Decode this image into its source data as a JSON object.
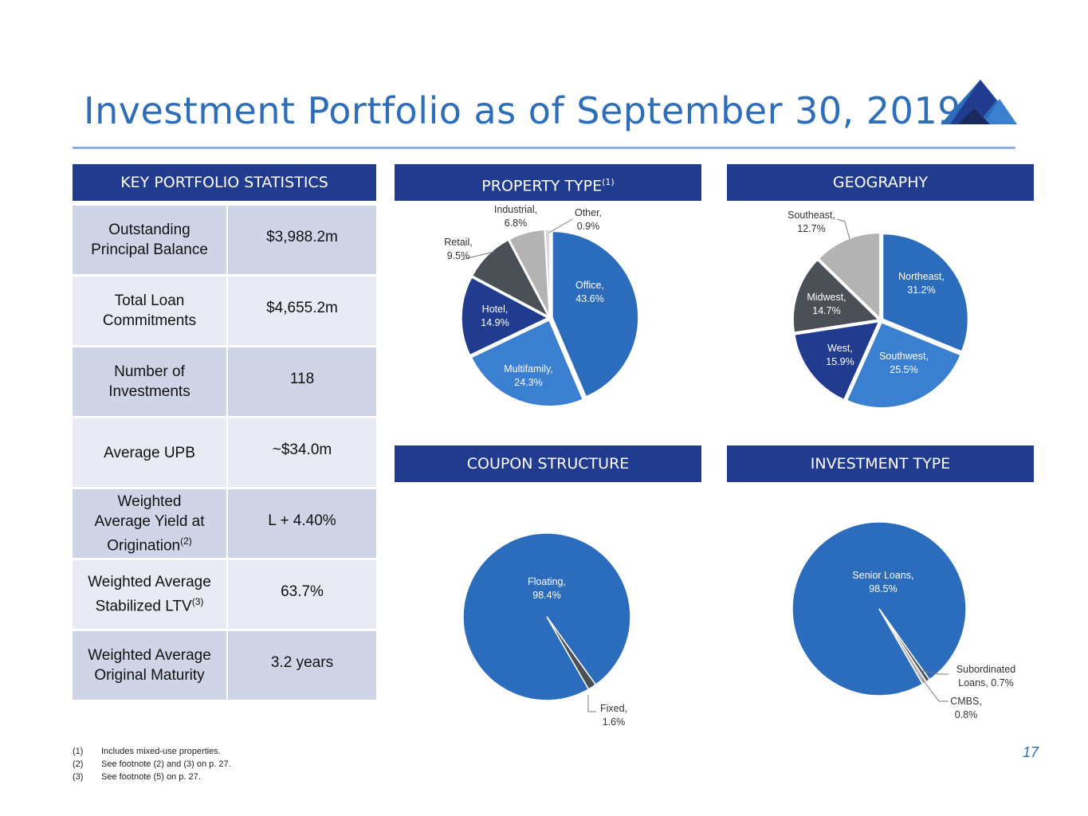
{
  "title": "Investment Portfolio as of September 30, 2019",
  "colors": {
    "title": "#2e6db8",
    "header_bg": "#213c8f",
    "accent_blue": "#2c6cbd",
    "mid_blue": "#3a7fd0",
    "navy": "#213c8f",
    "dark_gray": "#4a5055",
    "light_gray": "#b3b3b3"
  },
  "stats": {
    "header": "KEY PORTFOLIO STATISTICS",
    "rows": [
      {
        "label": "Outstanding Principal Balance",
        "value": "$3,988.2m"
      },
      {
        "label": "Total Loan Commitments",
        "value": "$4,655.2m"
      },
      {
        "label": "Number of Investments",
        "value": "118"
      },
      {
        "label": "Average UPB",
        "value": "~$34.0m"
      },
      {
        "label": "Weighted Average Yield at Origination",
        "sup": "(2)",
        "value": "L + 4.40%"
      },
      {
        "label": "Weighted Average Stabilized LTV",
        "sup": "(3)",
        "value": "63.7%"
      },
      {
        "label": "Weighted Average Original Maturity",
        "value": "3.2 years"
      }
    ]
  },
  "headers": {
    "property_type": "PROPERTY TYPE",
    "property_type_sup": "(1)",
    "geography": "GEOGRAPHY",
    "coupon_structure": "COUPON STRUCTURE",
    "investment_type": "INVESTMENT TYPE"
  },
  "chart_data": [
    {
      "type": "pie",
      "title": "PROPERTY TYPE",
      "slices": [
        {
          "name": "Office",
          "label": "Office,",
          "value": 43.6,
          "pct": "43.6%",
          "color": "#2c6cbd"
        },
        {
          "name": "Multifamily",
          "label": "Multifamily,",
          "value": 24.3,
          "pct": "24.3%",
          "color": "#3a7fd0"
        },
        {
          "name": "Hotel",
          "label": "Hotel,",
          "value": 14.9,
          "pct": "14.9%",
          "color": "#213c8f"
        },
        {
          "name": "Retail",
          "label": "Retail,",
          "value": 9.5,
          "pct": "9.5%",
          "color": "#4a5055"
        },
        {
          "name": "Industrial",
          "label": "Industrial,",
          "value": 6.8,
          "pct": "6.8%",
          "color": "#b3b3b3"
        },
        {
          "name": "Other",
          "label": "Other,",
          "value": 0.9,
          "pct": "0.9%",
          "color": "#d9d9d9"
        }
      ]
    },
    {
      "type": "pie",
      "title": "GEOGRAPHY",
      "slices": [
        {
          "name": "Northeast",
          "label": "Northeast,",
          "value": 31.2,
          "pct": "31.2%",
          "color": "#2c6cbd"
        },
        {
          "name": "Southwest",
          "label": "Southwest,",
          "value": 25.5,
          "pct": "25.5%",
          "color": "#3a7fd0"
        },
        {
          "name": "West",
          "label": "West,",
          "value": 15.9,
          "pct": "15.9%",
          "color": "#213c8f"
        },
        {
          "name": "Midwest",
          "label": "Midwest,",
          "value": 14.7,
          "pct": "14.7%",
          "color": "#4a5055"
        },
        {
          "name": "Southeast",
          "label": "Southeast,",
          "value": 12.7,
          "pct": "12.7%",
          "color": "#b3b3b3"
        }
      ]
    },
    {
      "type": "pie",
      "title": "COUPON STRUCTURE",
      "slices": [
        {
          "name": "Floating",
          "label": "Floating,",
          "value": 98.4,
          "pct": "98.4%",
          "color": "#2c6cbd"
        },
        {
          "name": "Fixed",
          "label": "Fixed,",
          "value": 1.6,
          "pct": "1.6%",
          "color": "#4a5055"
        }
      ]
    },
    {
      "type": "pie",
      "title": "INVESTMENT TYPE",
      "slices": [
        {
          "name": "Senior Loans",
          "label": "Senior Loans,",
          "value": 98.5,
          "pct": "98.5%",
          "color": "#2c6cbd"
        },
        {
          "name": "Subordinated Loans",
          "label": "Subordinated Loans,",
          "value": 0.7,
          "pct": "0.7%",
          "color": "#4a5055"
        },
        {
          "name": "CMBS",
          "label": "CMBS,",
          "value": 0.8,
          "pct": "0.8%",
          "color": "#b3b3b3"
        }
      ]
    }
  ],
  "footnotes": [
    {
      "num": "(1)",
      "text": "Includes mixed-use properties."
    },
    {
      "num": "(2)",
      "text": "See footnote (2) and (3) on p. 27."
    },
    {
      "num": "(3)",
      "text": "See footnote (5) on p. 27."
    }
  ],
  "page_number": "17"
}
